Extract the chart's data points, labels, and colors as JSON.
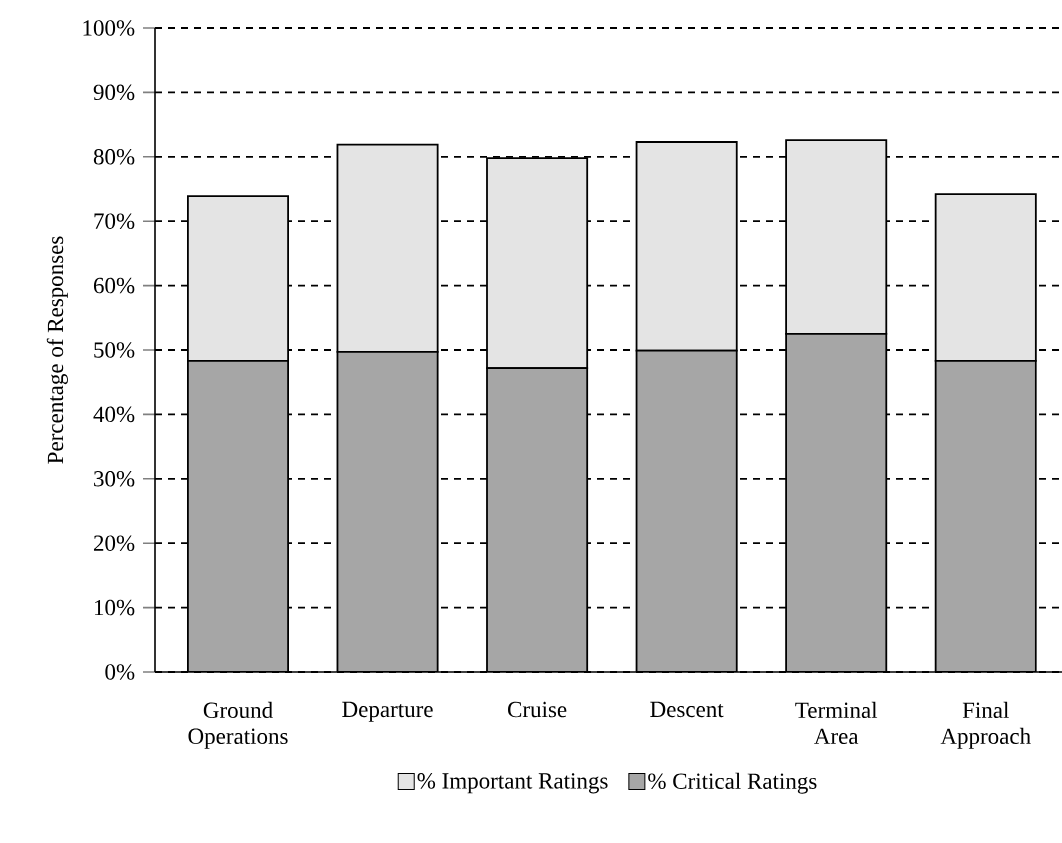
{
  "chart_data": {
    "type": "bar",
    "stacked": true,
    "ylabel": "Percentage of Responses",
    "categories": [
      "Ground Operations",
      "Departure",
      "Cruise",
      "Descent",
      "Terminal Area",
      "Final Approach"
    ],
    "series": [
      {
        "name": "% Critical Ratings",
        "color": "#a6a6a6",
        "values": [
          48.3,
          49.7,
          47.2,
          49.9,
          52.5,
          48.3
        ]
      },
      {
        "name": "% Important Ratings",
        "color": "#e4e4e4",
        "values": [
          25.6,
          32.2,
          32.6,
          32.4,
          30.1,
          25.9
        ]
      }
    ],
    "ylim": [
      0,
      100
    ],
    "yticks": [
      {
        "value": 0,
        "label": "0%"
      },
      {
        "value": 10,
        "label": "10%"
      },
      {
        "value": 20,
        "label": "20%"
      },
      {
        "value": 30,
        "label": "30%"
      },
      {
        "value": 40,
        "label": "40%"
      },
      {
        "value": 50,
        "label": "50%"
      },
      {
        "value": 60,
        "label": "60%"
      },
      {
        "value": 70,
        "label": "70%"
      },
      {
        "value": 80,
        "label": "80%"
      },
      {
        "value": 90,
        "label": "90%"
      },
      {
        "value": 100,
        "label": "100%"
      }
    ],
    "grid": "y",
    "legend": "bottom"
  }
}
